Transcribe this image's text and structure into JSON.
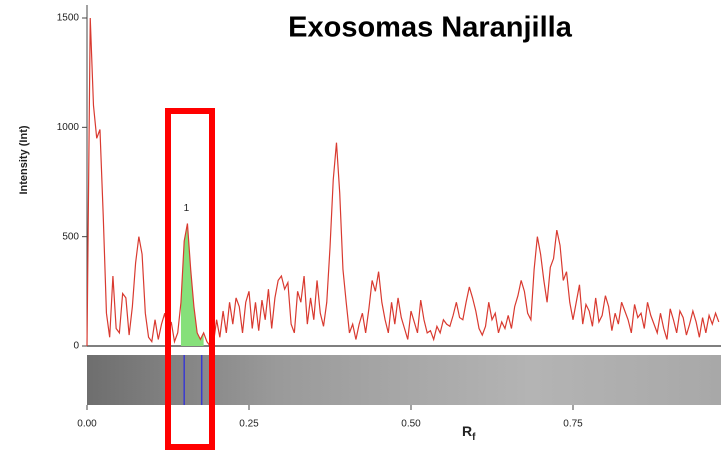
{
  "chart_data": {
    "type": "line",
    "title": "Exosomas Naranjilla",
    "y_label": "Intensity (Int)",
    "x_label": "R",
    "x_label_subscript": "f",
    "peak_label": "1",
    "peak_range": [
      0.145,
      0.18
    ],
    "band_markers": [
      0.15,
      0.177
    ],
    "color": "#d93a30",
    "peak_color": "#86e07a",
    "band_color": "#3a3ad0",
    "xlim": [
      0,
      0.978
    ],
    "ylim": [
      0,
      1500
    ],
    "xticks": [
      {
        "value": 0,
        "label": "0.00"
      },
      {
        "value": 0.25,
        "label": "0.25"
      },
      {
        "value": 0.5,
        "label": "0.50"
      },
      {
        "value": 0.75,
        "label": "0.75"
      }
    ],
    "yticks": [
      0,
      500,
      1000,
      1500
    ],
    "x": [
      0,
      0.005,
      0.01,
      0.015,
      0.02,
      0.025,
      0.03,
      0.035,
      0.04,
      0.045,
      0.05,
      0.055,
      0.06,
      0.065,
      0.07,
      0.075,
      0.08,
      0.085,
      0.09,
      0.095,
      0.1,
      0.105,
      0.11,
      0.115,
      0.12,
      0.125,
      0.13,
      0.135,
      0.14,
      0.145,
      0.15,
      0.155,
      0.16,
      0.165,
      0.17,
      0.175,
      0.18,
      0.185,
      0.19,
      0.195,
      0.2,
      0.205,
      0.21,
      0.215,
      0.22,
      0.225,
      0.23,
      0.235,
      0.24,
      0.245,
      0.25,
      0.255,
      0.26,
      0.265,
      0.27,
      0.275,
      0.28,
      0.285,
      0.29,
      0.295,
      0.3,
      0.305,
      0.31,
      0.315,
      0.32,
      0.325,
      0.33,
      0.335,
      0.34,
      0.345,
      0.35,
      0.355,
      0.36,
      0.365,
      0.37,
      0.375,
      0.38,
      0.385,
      0.39,
      0.395,
      0.4,
      0.405,
      0.41,
      0.415,
      0.42,
      0.425,
      0.43,
      0.435,
      0.44,
      0.445,
      0.45,
      0.455,
      0.46,
      0.465,
      0.47,
      0.475,
      0.48,
      0.485,
      0.49,
      0.495,
      0.5,
      0.505,
      0.51,
      0.515,
      0.52,
      0.525,
      0.53,
      0.535,
      0.54,
      0.545,
      0.55,
      0.555,
      0.56,
      0.565,
      0.57,
      0.575,
      0.58,
      0.585,
      0.59,
      0.595,
      0.6,
      0.605,
      0.61,
      0.615,
      0.62,
      0.625,
      0.63,
      0.635,
      0.64,
      0.645,
      0.65,
      0.655,
      0.66,
      0.665,
      0.67,
      0.675,
      0.68,
      0.685,
      0.69,
      0.695,
      0.7,
      0.705,
      0.71,
      0.715,
      0.72,
      0.725,
      0.73,
      0.735,
      0.74,
      0.745,
      0.75,
      0.755,
      0.76,
      0.765,
      0.77,
      0.775,
      0.78,
      0.785,
      0.79,
      0.795,
      0.8,
      0.805,
      0.81,
      0.815,
      0.82,
      0.825,
      0.83,
      0.835,
      0.84,
      0.845,
      0.85,
      0.855,
      0.86,
      0.865,
      0.87,
      0.875,
      0.88,
      0.885,
      0.89,
      0.895,
      0.9,
      0.905,
      0.91,
      0.915,
      0.92,
      0.925,
      0.93,
      0.935,
      0.94,
      0.945,
      0.95,
      0.955,
      0.96,
      0.965,
      0.97,
      0.975
    ],
    "values": [
      0,
      1500,
      1100,
      950,
      990,
      600,
      150,
      40,
      320,
      80,
      60,
      240,
      220,
      50,
      180,
      380,
      500,
      420,
      150,
      40,
      20,
      120,
      30,
      100,
      150,
      50,
      110,
      20,
      60,
      200,
      480,
      560,
      350,
      180,
      60,
      30,
      60,
      20,
      0,
      10,
      120,
      40,
      160,
      60,
      200,
      100,
      220,
      180,
      60,
      200,
      250,
      80,
      200,
      70,
      210,
      120,
      260,
      80,
      220,
      300,
      320,
      260,
      290,
      100,
      60,
      250,
      200,
      320,
      100,
      220,
      120,
      300,
      150,
      90,
      200,
      450,
      760,
      930,
      700,
      350,
      200,
      60,
      100,
      30,
      100,
      150,
      60,
      170,
      300,
      250,
      340,
      200,
      120,
      60,
      200,
      100,
      220,
      130,
      80,
      30,
      160,
      110,
      60,
      210,
      120,
      60,
      70,
      30,
      90,
      60,
      120,
      100,
      90,
      140,
      200,
      130,
      120,
      200,
      270,
      220,
      160,
      80,
      50,
      90,
      200,
      120,
      150,
      60,
      110,
      80,
      140,
      80,
      180,
      230,
      300,
      250,
      150,
      120,
      350,
      500,
      420,
      300,
      200,
      360,
      400,
      530,
      460,
      300,
      340,
      200,
      120,
      200,
      280,
      100,
      190,
      160,
      90,
      220,
      110,
      140,
      230,
      180,
      70,
      150,
      100,
      200,
      160,
      120,
      60,
      190,
      130,
      150,
      80,
      200,
      140,
      100,
      60,
      150,
      80,
      30,
      170,
      120,
      60,
      160,
      130,
      50,
      100,
      160,
      110,
      40,
      130,
      60,
      140,
      100,
      150,
      110
    ]
  }
}
